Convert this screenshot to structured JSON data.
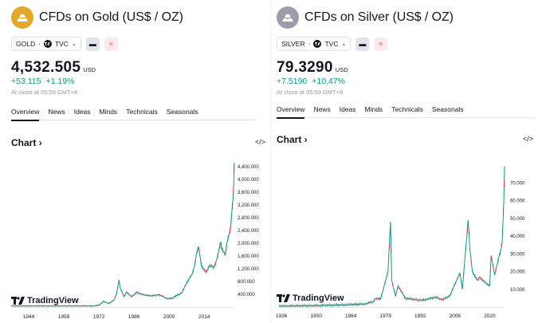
{
  "panels": [
    {
      "id": "gold",
      "title": "CFDs on Gold (US$ / OZ)",
      "symbol": "GOLD",
      "source": "TVC",
      "price": "4,532.505",
      "currency": "USD",
      "change_abs": "+53.115",
      "change_pct": "+1.19%",
      "close_note": "At close at 05:59 GMT+8",
      "tabs": [
        "Overview",
        "News",
        "Ideas",
        "Minds",
        "Technicals",
        "Seasonals"
      ],
      "chart_heading": "Chart",
      "embed_label": "</>",
      "watermark": "TradingView",
      "colors": {
        "logo": "#e2a827",
        "up": "#089981",
        "down": "#f23645"
      }
    },
    {
      "id": "silver",
      "title": "CFDs on Silver (US$ / OZ)",
      "symbol": "SILVER",
      "source": "TVC",
      "price": "79.3290",
      "currency": "USD",
      "change_abs": "+7.5190",
      "change_pct": "+10.47%",
      "close_note": "At close at 05:59 GMT+8",
      "tabs": [
        "Overview",
        "News",
        "Ideas",
        "Minds",
        "Technicals",
        "Seasonals"
      ],
      "chart_heading": "Chart",
      "embed_label": "</>",
      "watermark": "TradingView",
      "colors": {
        "logo": "#9a9ea8",
        "up": "#089981",
        "down": "#f23645"
      }
    }
  ],
  "chart_data": [
    {
      "type": "line",
      "title": "",
      "xlabel": "",
      "ylabel": "",
      "x_ticks": [
        "1944",
        "1958",
        "1972",
        "1986",
        "2000",
        "2014"
      ],
      "y_ticks": [
        400,
        800,
        1200,
        1600,
        2000,
        2400,
        2800,
        3200,
        3600,
        4000,
        4400
      ],
      "y_tick_labels": [
        "400.000",
        "800.000",
        "1,200.000",
        "1,600.000",
        "2,000.000",
        "2,400.000",
        "2,800.000",
        "3,200.000",
        "3,600.000",
        "4,000.000",
        "4,400.000"
      ],
      "xlim": [
        1937,
        2026
      ],
      "ylim": [
        0,
        4500
      ],
      "series": [
        {
          "x": [
            1937,
            1950,
            1965,
            1970,
            1972,
            1974,
            1975,
            1976,
            1978,
            1979,
            1980,
            1980.5,
            1982,
            1983,
            1985,
            1987,
            1990,
            1993,
            1996,
            1999,
            2001,
            2003,
            2005,
            2006,
            2008,
            2009,
            2010,
            2011,
            2011.7,
            2013,
            2015,
            2016,
            2018,
            2019,
            2020.6,
            2021,
            2022.5,
            2023,
            2024,
            2024.5,
            2025,
            2025.5,
            2025.8,
            2026
          ],
          "y": [
            35,
            35,
            35,
            36,
            60,
            180,
            140,
            110,
            220,
            400,
            850,
            600,
            320,
            480,
            320,
            460,
            380,
            350,
            390,
            270,
            270,
            360,
            440,
            600,
            900,
            1000,
            1250,
            1700,
            1900,
            1250,
            1100,
            1300,
            1250,
            1500,
            2050,
            1800,
            1650,
            2000,
            2300,
            2500,
            3000,
            3400,
            4000,
            4532
          ]
        }
      ]
    },
    {
      "type": "line",
      "title": "",
      "xlabel": "",
      "ylabel": "",
      "x_ticks": [
        "1936",
        "1950",
        "1964",
        "1978",
        "1992",
        "2006",
        "2020"
      ],
      "y_ticks": [
        10,
        20,
        30,
        40,
        50,
        60,
        70
      ],
      "y_tick_labels": [
        "10.000",
        "20.000",
        "30.000",
        "40.000",
        "50.000",
        "60.000",
        "70.000"
      ],
      "xlim": [
        1935,
        2026
      ],
      "ylim": [
        0,
        80
      ],
      "series": [
        {
          "x": [
            1935,
            1950,
            1963,
            1967,
            1970,
            1973,
            1974,
            1976,
            1979,
            1980,
            1980.5,
            1982,
            1983,
            1986,
            1990,
            1993,
            1998,
            2001,
            2004,
            2006,
            2008,
            2009,
            2010,
            2011.3,
            2012,
            2013,
            2015,
            2016,
            2018,
            2020,
            2020.6,
            2021,
            2022,
            2023,
            2024,
            2024.5,
            2025,
            2025.4,
            2025.7,
            2026
          ],
          "y": [
            0.5,
            0.8,
            1.3,
            1.6,
            1.8,
            3,
            5,
            4.5,
            20,
            48,
            15,
            6,
            12,
            5,
            4.2,
            3.8,
            5.5,
            4.2,
            6.5,
            13,
            19,
            10,
            27,
            49,
            33,
            20,
            15,
            17,
            14,
            12,
            29,
            26,
            18,
            24,
            30,
            32,
            36,
            48,
            60,
            79.3
          ]
        }
      ]
    }
  ]
}
